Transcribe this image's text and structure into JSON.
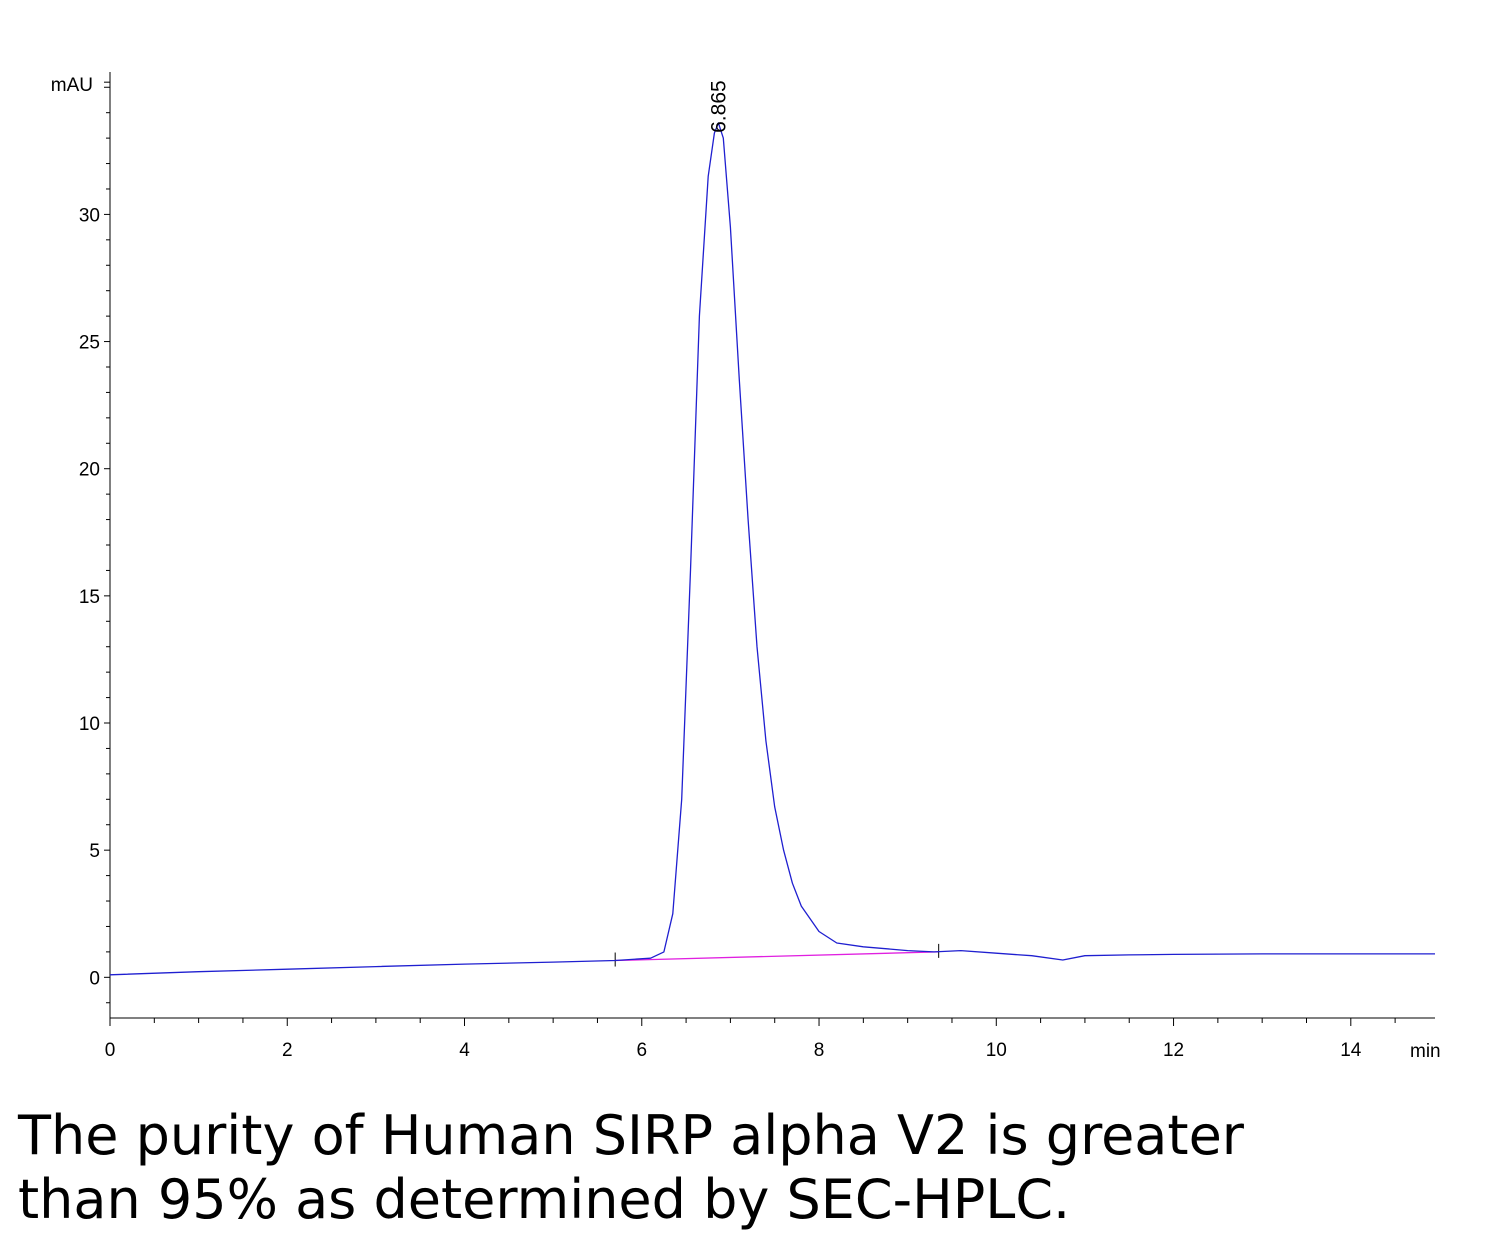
{
  "chart_data": {
    "type": "line",
    "title": "",
    "xlabel": "min",
    "ylabel": "mAU",
    "xlim": [
      0,
      14.95
    ],
    "ylim": [
      -1.6,
      35.6
    ],
    "x_ticks": [
      "0",
      "2",
      "4",
      "6",
      "8",
      "10",
      "12",
      "14"
    ],
    "y_ticks": [
      "0",
      "5",
      "10",
      "15",
      "20",
      "25",
      "30"
    ],
    "grid": false,
    "line_color": "#1f1fd0",
    "baseline_color": "#e020e0",
    "series": [
      {
        "x": [
          0,
          1,
          2,
          3,
          4,
          5,
          5.7,
          6.1,
          6.25,
          6.35,
          6.45,
          6.55,
          6.65,
          6.75,
          6.82,
          6.865,
          6.92,
          7.0,
          7.1,
          7.2,
          7.3,
          7.4,
          7.5,
          7.6,
          7.7,
          7.8,
          8.0,
          8.2,
          8.5,
          9.0,
          9.3,
          9.6,
          10.0,
          10.4,
          10.75,
          11.0,
          11.5,
          12.0,
          13.0,
          14.0,
          14.95
        ],
        "y": [
          0.1,
          0.22,
          0.32,
          0.42,
          0.52,
          0.6,
          0.66,
          0.75,
          1.0,
          2.5,
          7.0,
          16.0,
          26.0,
          31.5,
          33.2,
          33.6,
          33.0,
          29.5,
          23.5,
          18.0,
          13.0,
          9.3,
          6.7,
          5.0,
          3.7,
          2.8,
          1.8,
          1.35,
          1.2,
          1.05,
          1.0,
          1.05,
          0.95,
          0.85,
          0.68,
          0.85,
          0.88,
          0.9,
          0.92,
          0.92,
          0.92
        ]
      }
    ],
    "integration_baseline": {
      "x": [
        5.7,
        9.35
      ],
      "y": [
        0.66,
        1.0
      ]
    },
    "integration_marks_x": [
      5.7,
      9.35
    ],
    "peak_label": {
      "text": "6.865",
      "x": 6.865,
      "y": 33.6
    }
  },
  "caption": {
    "line1": "The purity of Human SIRP alpha V2 is greater",
    "line2": "than 95% as determined by SEC-HPLC."
  }
}
